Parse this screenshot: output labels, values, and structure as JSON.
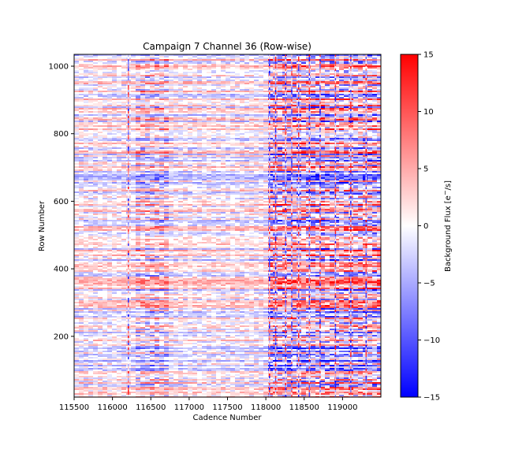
{
  "chart_data": {
    "type": "heatmap",
    "title": "Campaign 7 Channel 36 (Row-wise)",
    "xlabel": "Cadence Number",
    "ylabel": "Row Number",
    "xlim": [
      115500,
      119500
    ],
    "ylim": [
      20,
      1035
    ],
    "xticks": [
      115500,
      116000,
      116500,
      117000,
      117500,
      118000,
      118500,
      119000
    ],
    "xtick_labels": [
      "115500",
      "116000",
      "116500",
      "117000",
      "117500",
      "118000",
      "118500",
      "119000"
    ],
    "yticks": [
      200,
      400,
      600,
      800,
      1000
    ],
    "ytick_labels": [
      "200",
      "400",
      "600",
      "800",
      "1000"
    ],
    "colorbar": {
      "label": "Background Flux [e$^-$/s]",
      "label_text": "Background Flux [e",
      "label_sup": "−",
      "label_tail": "/s]",
      "min": -15,
      "max": 15,
      "ticks": [
        15,
        10,
        5,
        0,
        -5,
        -10,
        -15
      ],
      "tick_labels": [
        "15",
        "10",
        "5",
        "0",
        "−5",
        "−10",
        "−15"
      ],
      "colormap": "bwr",
      "colors": {
        "low": "#0000ff",
        "mid": "#ffffff",
        "high": "#ff0000"
      }
    },
    "grid": false
  }
}
